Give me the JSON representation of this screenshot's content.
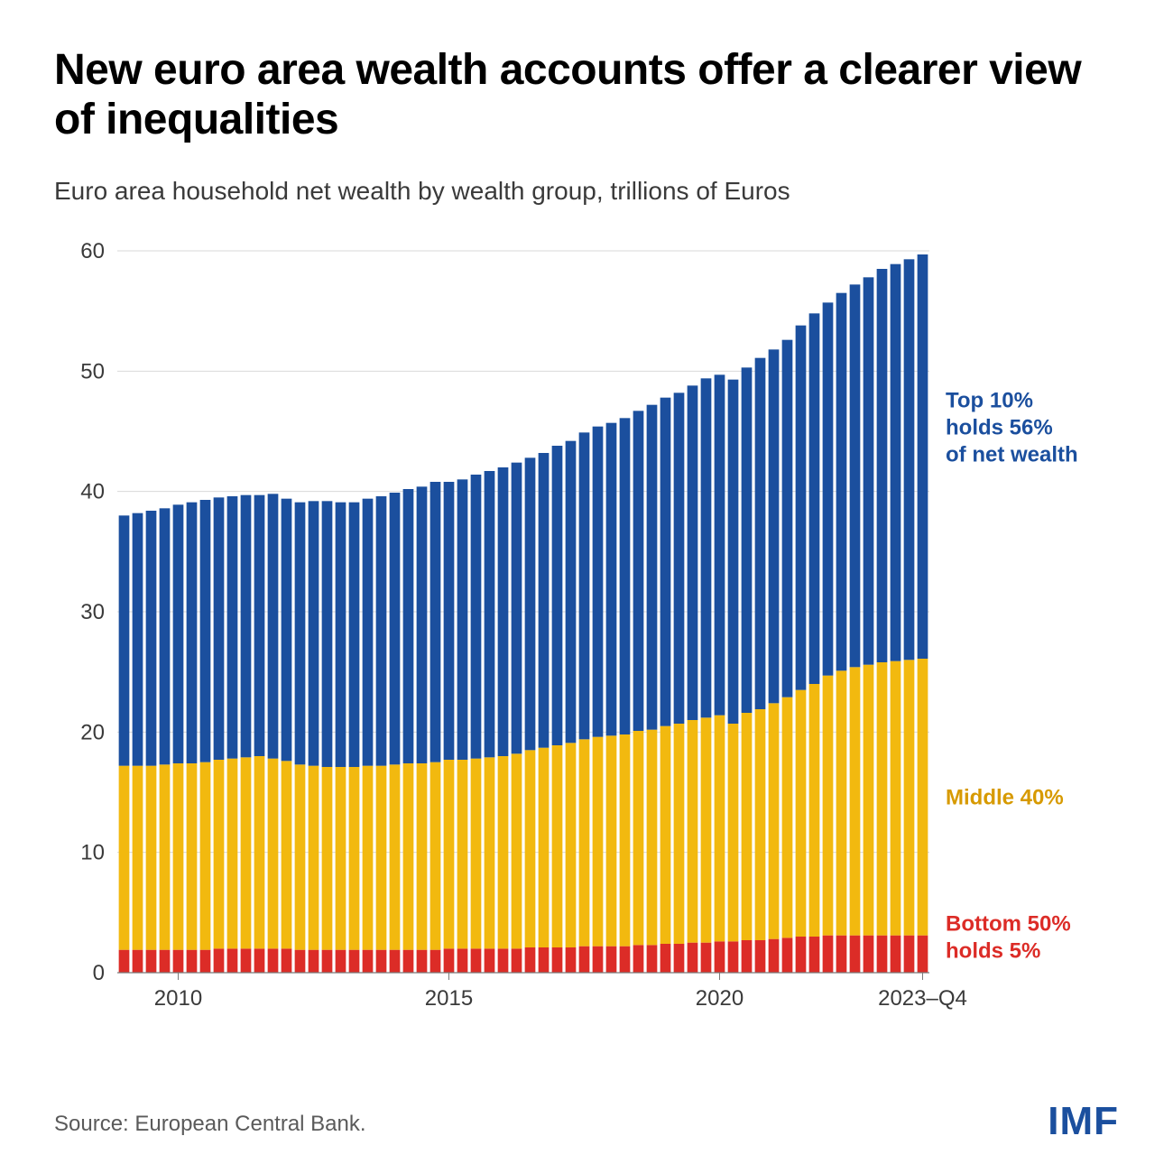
{
  "title": "New euro area wealth accounts offer a clearer view of inequalities",
  "subtitle": "Euro area household net wealth by wealth group, trillions of Euros",
  "source": "Source: European Central Bank.",
  "logo": "IMF",
  "chart": {
    "type": "stacked-bar",
    "background_color": "#ffffff",
    "grid_color": "#d9d9d9",
    "axis_color": "#7a7a7a",
    "tick_font_size": 24,
    "ylim": [
      0,
      60
    ],
    "ytick_step": 10,
    "yticks": [
      0,
      10,
      20,
      30,
      40,
      50,
      60
    ],
    "xticks": [
      {
        "index": 4,
        "label": "2010"
      },
      {
        "index": 24,
        "label": "2015"
      },
      {
        "index": 44,
        "label": "2020"
      },
      {
        "index": 59,
        "label": "2023–Q4"
      }
    ],
    "bar_gap_ratio": 0.22,
    "series_order": [
      "bottom50",
      "middle40",
      "top10"
    ],
    "series": {
      "bottom50": {
        "color": "#dc2c27",
        "legend_lines": [
          "Bottom 50%",
          "holds 5%"
        ],
        "label_color": "#dc2c27"
      },
      "middle40": {
        "color": "#f2b90f",
        "legend_lines": [
          "Middle 40%"
        ],
        "label_color": "#d79a00"
      },
      "top10": {
        "color": "#1b4f9e",
        "legend_lines": [
          "Top 10%",
          "holds 56%",
          "of net wealth"
        ],
        "label_color": "#1b4f9e"
      }
    },
    "n_bars": 60,
    "data": {
      "bottom50": [
        1.9,
        1.9,
        1.9,
        1.9,
        1.9,
        1.9,
        1.9,
        2.0,
        2.0,
        2.0,
        2.0,
        2.0,
        2.0,
        1.9,
        1.9,
        1.9,
        1.9,
        1.9,
        1.9,
        1.9,
        1.9,
        1.9,
        1.9,
        1.9,
        2.0,
        2.0,
        2.0,
        2.0,
        2.0,
        2.0,
        2.1,
        2.1,
        2.1,
        2.1,
        2.2,
        2.2,
        2.2,
        2.2,
        2.3,
        2.3,
        2.4,
        2.4,
        2.5,
        2.5,
        2.6,
        2.6,
        2.7,
        2.7,
        2.8,
        2.9,
        3.0,
        3.0,
        3.1,
        3.1,
        3.1,
        3.1,
        3.1,
        3.1,
        3.1,
        3.1
      ],
      "middle40": [
        15.3,
        15.3,
        15.3,
        15.4,
        15.5,
        15.5,
        15.6,
        15.7,
        15.8,
        15.9,
        16.0,
        15.8,
        15.6,
        15.4,
        15.3,
        15.2,
        15.2,
        15.2,
        15.3,
        15.3,
        15.4,
        15.5,
        15.5,
        15.6,
        15.7,
        15.7,
        15.8,
        15.9,
        16.0,
        16.2,
        16.4,
        16.6,
        16.8,
        17.0,
        17.2,
        17.4,
        17.5,
        17.6,
        17.8,
        17.9,
        18.1,
        18.3,
        18.5,
        18.7,
        18.8,
        18.1,
        18.9,
        19.2,
        19.6,
        20.0,
        20.5,
        21.0,
        21.6,
        22.0,
        22.3,
        22.5,
        22.7,
        22.8,
        22.9,
        23.0
      ],
      "top10": [
        20.8,
        21.0,
        21.2,
        21.3,
        21.5,
        21.7,
        21.8,
        21.8,
        21.8,
        21.8,
        21.7,
        22.0,
        21.8,
        21.8,
        22.0,
        22.1,
        22.0,
        22.0,
        22.2,
        22.4,
        22.6,
        22.8,
        23.0,
        23.3,
        23.1,
        23.3,
        23.6,
        23.8,
        24.0,
        24.2,
        24.3,
        24.5,
        24.9,
        25.1,
        25.5,
        25.8,
        26.0,
        26.3,
        26.6,
        27.0,
        27.3,
        27.5,
        27.8,
        28.2,
        28.3,
        28.6,
        28.7,
        29.2,
        29.4,
        29.7,
        30.3,
        30.8,
        31.0,
        31.4,
        31.8,
        32.2,
        32.7,
        33.0,
        33.3,
        33.6
      ]
    },
    "legend_positions": {
      "top10": {
        "y_value": 47
      },
      "middle40": {
        "y_value": 14
      },
      "bottom50": {
        "y_value": 3.5
      }
    },
    "legend_font_size": 24,
    "legend_line_height": 30
  }
}
